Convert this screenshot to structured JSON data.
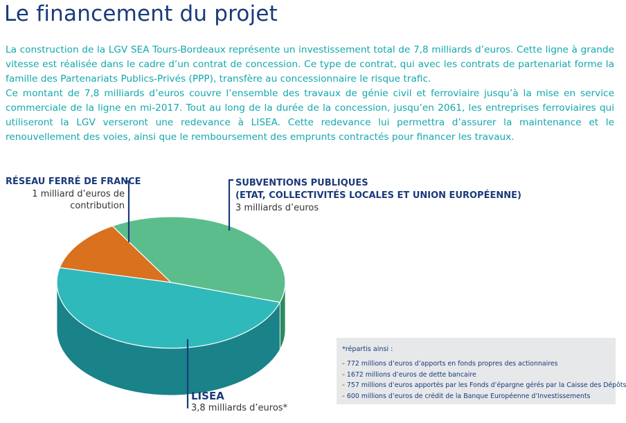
{
  "title": "Le financement du projet",
  "intro": {
    "paragraph1": "La construction de la LGV SEA Tours-Bordeaux représente un investissement total de 7,8 milliards d’euros. Cette ligne à grande vitesse est réalisée dans le cadre d’un contrat de concession. Ce type de contrat, qui avec les contrats de partenariat forme la famille des Partenariats Publics-Privés (PPP), transfère au concessionnaire le risque trafic.",
    "paragraph2": "Ce montant de 7,8 milliards d’euros couvre l’ensemble des travaux de génie civil et ferroviaire jusqu’à la mise en service commerciale de la ligne en mi-2017. Tout au long de la durée de la concession, jusqu’en 2061, les entreprises ferroviaires qui utiliseront la LGV verseront une redevance à LISEA. Cette redevance lui permettra d’assurer la maintenance et le renouvellement des voies, ainsi que le remboursement des emprunts contractés pour financer les travaux."
  },
  "chart_data": {
    "type": "pie",
    "total": 7.8,
    "unit": "milliards d’euros",
    "slices": [
      {
        "title": "RÉSEAU FERRÉ DE FRANCE",
        "subtitle": "",
        "value": 1.0,
        "amount_text": "1 milliard d’euros de contribution",
        "color": "#d9711f",
        "side_color": "#a04c10"
      },
      {
        "title": "SUBVENTIONS PUBLIQUES",
        "subtitle": "(ETAT, COLLECTIVITÉS LOCALES ET UNION EUROPÉENNE)",
        "value": 3.0,
        "amount_text": "3 milliards d’euros",
        "color": "#5cbd8c",
        "side_color": "#2f8a5f"
      },
      {
        "title": "LISEA",
        "subtitle": "",
        "value": 3.8,
        "amount_text": "3,8 milliards d’euros*",
        "color": "#2fb9bb",
        "side_color": "#1a8289"
      }
    ]
  },
  "footnote": {
    "heading": "*répartis ainsi :",
    "dash": "-",
    "items": [
      "772 millions d’euros d’apports en fonds propres des actionnaires",
      "1672 millions d’euros de dette bancaire",
      "757 millions d’euros apportés par les Fonds d’épargne gérés par la Caisse des Dépôts",
      "600 millions d’euros de crédit de la Banque Européenne d’Investissements"
    ]
  },
  "colors": {
    "title": "#1a3a7a",
    "intro_text": "#13a8ad",
    "leader_line": "#1a3a7a",
    "footnote_bg": "#e6e8ea",
    "footnote_dash": "#e07820"
  }
}
